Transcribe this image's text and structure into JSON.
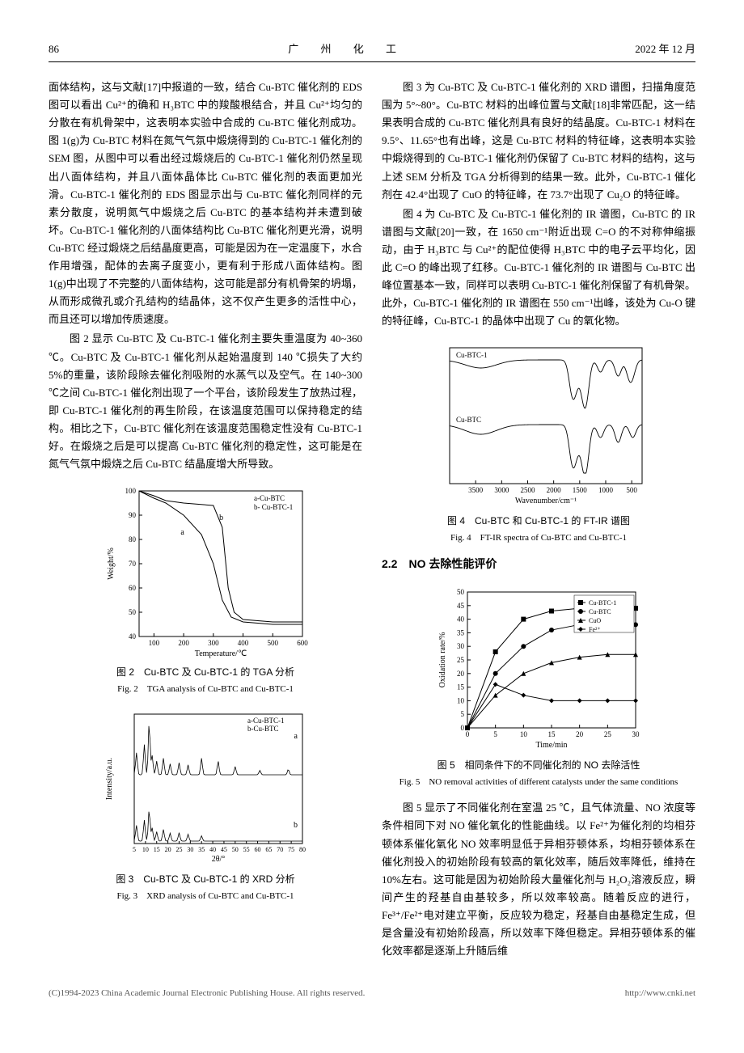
{
  "header": {
    "page_num": "86",
    "journal": "广 州 化 工",
    "date": "2022 年 12 月"
  },
  "left_col": {
    "p1": "面体结构，这与文献[17]中报道的一致，结合 Cu-BTC 催化剂的 EDS 图可以看出 Cu²⁺的确和 H₃BTC 中的羧酸根结合，并且 Cu²⁺均匀的分散在有机骨架中，这表明本实验中合成的 Cu-BTC 催化剂成功。图 1(g)为 Cu-BTC 材料在氮气气氛中煅烧得到的 Cu-BTC-1 催化剂的 SEM 图，从图中可以看出经过煅烧后的 Cu-BTC-1 催化剂仍然呈现出八面体结构，并且八面体晶体比 Cu-BTC 催化剂的表面更加光滑。Cu-BTC-1 催化剂的 EDS 图显示出与 Cu-BTC 催化剂同样的元素分散度，说明氮气中煅烧之后 Cu-BTC 的基本结构并未遭到破坏。Cu-BTC-1 催化剂的八面体结构比 Cu-BTC 催化剂更光滑，说明 Cu-BTC 经过煅烧之后结晶度更高，可能是因为在一定温度下，水合作用增强，配体的去离子度变小，更有利于形成八面体结构。图 1(g)中出现了不完整的八面体结构，这可能是部分有机骨架的坍塌，从而形成微孔或介孔结构的结晶体，这不仅产生更多的活性中心，而且还可以增加传质速度。",
    "p2": "图 2 显示 Cu-BTC 及 Cu-BTC-1 催化剂主要失重温度为 40~360 ℃。Cu-BTC 及 Cu-BTC-1 催化剂从起始温度到 140 ℃损失了大约 5%的重量，该阶段除去催化剂吸附的水蒸气以及空气。在 140~300 ℃之间 Cu-BTC-1 催化剂出现了一个平台，该阶段发生了放热过程，即 Cu-BTC-1 催化剂的再生阶段，在该温度范围可以保持稳定的结构。相比之下，Cu-BTC 催化剂在该温度范围稳定性没有 Cu-BTC-1 好。在煅烧之后是可以提高 Cu-BTC 催化剂的稳定性，这可能是在氮气气氛中煅烧之后 Cu-BTC 结晶度增大所导致。"
  },
  "right_col": {
    "p1": "图 3 为 Cu-BTC 及 Cu-BTC-1 催化剂的 XRD 谱图，扫描角度范围为 5°~80°。Cu-BTC 材料的出峰位置与文献[18]非常匹配，这一结果表明合成的 Cu-BTC 催化剂具有良好的结晶度。Cu-BTC-1 材料在 9.5°、11.65°也有出峰，这是 Cu-BTC 材料的特征峰，这表明本实验中煅烧得到的 Cu-BTC-1 催化剂仍保留了 Cu-BTC 材料的结构，这与上述 SEM 分析及 TGA 分析得到的结果一致。此外，Cu-BTC-1 催化剂在 42.4°出现了 CuO 的特征峰，在 73.7°出现了 Cu₂O 的特征峰。",
    "p2": "图 4 为 Cu-BTC 及 Cu-BTC-1 催化剂的 IR 谱图，Cu-BTC 的 IR 谱图与文献[20]一致，在 1650 cm⁻¹附近出现 C=O 的不对称伸缩振动，由于 H₃BTC 与 Cu²⁺的配位使得 H₃BTC 中的电子云平均化，因此 C=O 的峰出现了红移。Cu-BTC-1 催化剂的 IR 谱图与 Cu-BTC 出峰位置基本一致，同样可以表明 Cu-BTC-1 催化剂保留了有机骨架。此外，Cu-BTC-1 催化剂的 IR 谱图在 550 cm⁻¹出峰，该处为 Cu-O 键的特征峰，Cu-BTC-1 的晶体中出现了 Cu 的氧化物。",
    "section": "2.2　NO 去除性能评价",
    "p3": "图 5 显示了不同催化剂在室温 25 ℃，且气体流量、NO 浓度等条件相同下对 NO 催化氧化的性能曲线。以 Fe²⁺为催化剂的均相芬顿体系催化氧化 NO 效率明显低于异相芬顿体系，均相芬顿体系在催化剂投入的初始阶段有较高的氧化效率，随后效率降低，维持在 10%左右。这可能是因为初始阶段大量催化剂与 H₂O₂溶液反应，瞬间产生的羟基自由基较多，所以效率较高。随着反应的进行，Fe³⁺/Fe²⁺电对建立平衡，反应较为稳定，羟基自由基稳定生成，但是含量没有初始阶段高，所以效率下降但稳定。异相芬顿体系的催化效率都是逐渐上升随后维"
  },
  "fig2": {
    "type": "line",
    "caption_cn": "图 2　Cu-BTC 及 Cu-BTC-1 的 TGA 分析",
    "caption_en": "Fig. 2　TGA analysis of Cu-BTC and Cu-BTC-1",
    "xlabel": "Temperature/℃",
    "ylabel": "Weight/%",
    "xlim": [
      50,
      600
    ],
    "ylim": [
      40,
      100
    ],
    "xticks": [
      100,
      200,
      300,
      400,
      500,
      600
    ],
    "yticks": [
      40,
      50,
      60,
      70,
      80,
      90,
      100
    ],
    "legend": [
      "a-Cu-BTC",
      "b- Cu-BTC-1"
    ],
    "series": {
      "a": {
        "x": [
          50,
          100,
          140,
          200,
          260,
          300,
          330,
          360,
          400,
          500,
          600
        ],
        "y": [
          100,
          97,
          95,
          90,
          82,
          70,
          55,
          48,
          46,
          45,
          45
        ]
      },
      "b": {
        "x": [
          50,
          100,
          140,
          200,
          300,
          330,
          350,
          370,
          400,
          500,
          600
        ],
        "y": [
          100,
          98,
          96,
          95,
          94,
          85,
          60,
          50,
          47,
          46,
          46
        ]
      }
    },
    "line_color": "#000000",
    "background": "#ffffff",
    "line_width": 1
  },
  "fig3": {
    "type": "xrd",
    "caption_cn": "图 3　Cu-BTC 及 Cu-BTC-1 的 XRD 分析",
    "caption_en": "Fig. 3　XRD analysis of Cu-BTC and Cu-BTC-1",
    "xlabel": "2θ/°",
    "ylabel": "Intensity/a.u.",
    "xlim": [
      5,
      80
    ],
    "xticks": [
      5,
      10,
      15,
      20,
      25,
      30,
      35,
      40,
      45,
      50,
      55,
      60,
      65,
      70,
      75,
      80
    ],
    "legend": [
      "a-Cu-BTC-1",
      "b-Cu-BTC"
    ],
    "peaks_a": [
      6,
      9.5,
      11.65,
      13,
      15,
      18,
      21,
      25,
      29,
      35,
      42.4,
      50,
      61,
      73.7
    ],
    "heights_a": [
      40,
      55,
      95,
      35,
      25,
      30,
      20,
      22,
      18,
      30,
      25,
      15,
      8,
      10
    ],
    "peaks_b": [
      6,
      9.5,
      11.65,
      13,
      15,
      18,
      21,
      25,
      29,
      35
    ],
    "heights_b": [
      30,
      40,
      60,
      25,
      18,
      22,
      15,
      16,
      13,
      10
    ],
    "line_color": "#000000",
    "background": "#ffffff"
  },
  "fig4": {
    "type": "ftir",
    "caption_cn": "图 4　Cu-BTC 和 Cu-BTC-1 的 FT-IR 谱图",
    "caption_en": "Fig. 4　FT-IR spectra of Cu-BTC and Cu-BTC-1",
    "xlabel": "Wavenumber/cm⁻¹",
    "xlim": [
      4000,
      300
    ],
    "xticks": [
      3500,
      3000,
      2500,
      2000,
      1500,
      1000,
      500
    ],
    "labels": [
      "Cu-BTC-1",
      "Cu-BTC"
    ],
    "line_color": "#000000",
    "background": "#ffffff",
    "dips_top": [
      3400,
      1650,
      1570,
      1440,
      1370,
      1100,
      760,
      550,
      480
    ],
    "dips_top_depth": [
      10,
      35,
      25,
      30,
      40,
      15,
      20,
      18,
      15
    ],
    "dips_bot": [
      3400,
      1650,
      1570,
      1440,
      1370,
      1100,
      760,
      480
    ],
    "dips_bot_depth": [
      12,
      38,
      28,
      32,
      42,
      16,
      22,
      16
    ]
  },
  "fig5": {
    "type": "line",
    "caption_cn": "图 5　相同条件下的不同催化剂的 NO 去除活性",
    "caption_en": "Fig. 5　NO removal activities of different catalysts under the same conditions",
    "xlabel": "Time/min",
    "ylabel": "Oxidation rate/%",
    "xlim": [
      0,
      30
    ],
    "ylim": [
      0,
      50
    ],
    "xticks": [
      0,
      5,
      10,
      15,
      20,
      25,
      30
    ],
    "yticks": [
      0,
      5,
      10,
      15,
      20,
      25,
      30,
      35,
      40,
      45,
      50
    ],
    "legend": [
      "Cu-BTC-1",
      "Cu-BTC",
      "CuO",
      "Fe²⁺"
    ],
    "markers": [
      "square",
      "circle",
      "triangle",
      "diamond"
    ],
    "series": {
      "Cu-BTC-1": {
        "x": [
          0,
          5,
          10,
          15,
          20,
          25,
          30
        ],
        "y": [
          0,
          28,
          40,
          43,
          44,
          44,
          44
        ]
      },
      "Cu-BTC": {
        "x": [
          0,
          5,
          10,
          15,
          20,
          25,
          30
        ],
        "y": [
          0,
          20,
          30,
          36,
          38,
          38,
          38
        ]
      },
      "CuO": {
        "x": [
          0,
          5,
          10,
          15,
          20,
          25,
          30
        ],
        "y": [
          0,
          12,
          20,
          24,
          26,
          27,
          27
        ]
      },
      "Fe2": {
        "x": [
          0,
          5,
          10,
          15,
          20,
          25,
          30
        ],
        "y": [
          0,
          16,
          12,
          10,
          10,
          10,
          10
        ]
      }
    },
    "line_color": "#000000",
    "background": "#ffffff"
  },
  "footer": {
    "left": "(C)1994-2023 China Academic Journal Electronic Publishing House. All rights reserved.",
    "right": "http://www.cnki.net"
  }
}
